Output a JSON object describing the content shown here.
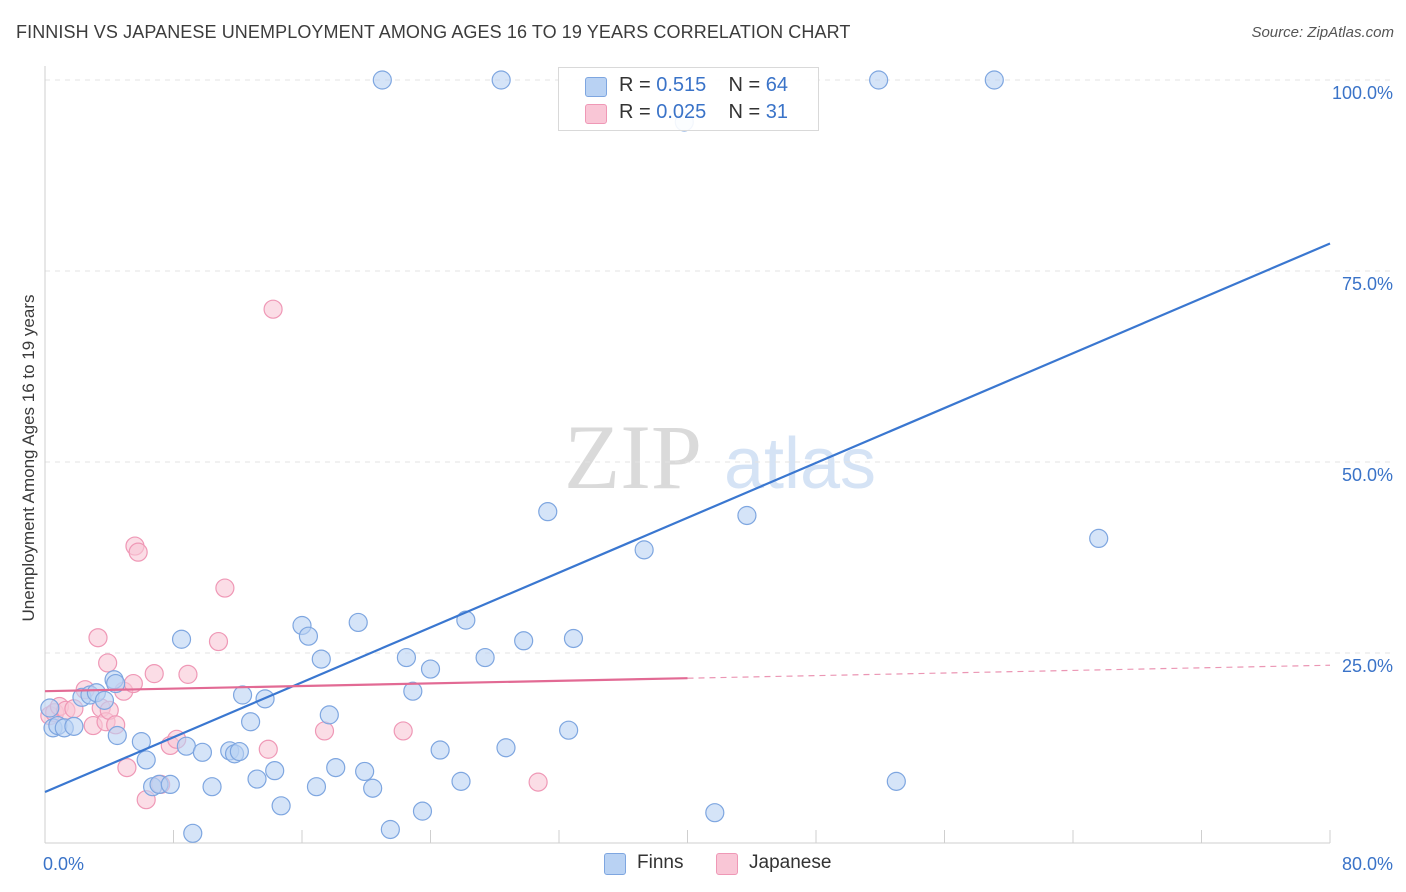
{
  "title": "FINNISH VS JAPANESE UNEMPLOYMENT AMONG AGES 16 TO 19 YEARS CORRELATION CHART",
  "source": "Source: ZipAtlas.com",
  "watermark": {
    "zip": "ZIP",
    "atlas": "atlas"
  },
  "legend": {
    "r_label": "R =",
    "n_label": "N =",
    "rows": [
      {
        "name": "Finns",
        "r": "0.515",
        "n": "64",
        "fill": "#b9d2f3",
        "stroke": "#7ea6e0"
      },
      {
        "name": "Japanese",
        "r": "0.025",
        "n": "31",
        "fill": "#f9c6d6",
        "stroke": "#ef98b6"
      }
    ]
  },
  "chart_data": {
    "type": "scatter",
    "title": "FINNISH VS JAPANESE UNEMPLOYMENT AMONG AGES 16 TO 19 YEARS CORRELATION CHART",
    "xlabel": "",
    "ylabel": "Unemployment Among Ages 16 to 19 years",
    "xlim": [
      0,
      80
    ],
    "ylim": [
      0,
      102
    ],
    "x_tick_labels": [
      "0.0%",
      "80.0%"
    ],
    "y_ticks": [
      25,
      50,
      75,
      100
    ],
    "y_tick_labels": [
      "25.0%",
      "50.0%",
      "75.0%",
      "100.0%"
    ],
    "grid": true,
    "legend_position": "top-center",
    "series": [
      {
        "name": "Finns",
        "color": "#3a77d0",
        "fill": "#b9d2f3",
        "stroke": "#7ea6e0",
        "points": [
          [
            0.3,
            17.8
          ],
          [
            0.5,
            15.2
          ],
          [
            0.8,
            15.5
          ],
          [
            1.2,
            15.2
          ],
          [
            1.8,
            15.4
          ],
          [
            2.3,
            19.2
          ],
          [
            2.8,
            19.5
          ],
          [
            3.2,
            19.8
          ],
          [
            3.7,
            18.8
          ],
          [
            4.3,
            21.5
          ],
          [
            4.4,
            21.0
          ],
          [
            4.5,
            14.2
          ],
          [
            6.0,
            13.4
          ],
          [
            6.3,
            11.0
          ],
          [
            6.7,
            7.5
          ],
          [
            7.1,
            7.8
          ],
          [
            7.8,
            7.8
          ],
          [
            8.5,
            26.8
          ],
          [
            8.8,
            12.8
          ],
          [
            9.2,
            1.4
          ],
          [
            9.8,
            12.0
          ],
          [
            10.4,
            7.5
          ],
          [
            11.5,
            12.2
          ],
          [
            11.8,
            11.8
          ],
          [
            12.1,
            12.1
          ],
          [
            12.3,
            19.5
          ],
          [
            12.8,
            16.0
          ],
          [
            13.2,
            8.5
          ],
          [
            13.7,
            19.0
          ],
          [
            14.3,
            9.6
          ],
          [
            14.7,
            5.0
          ],
          [
            16.0,
            28.6
          ],
          [
            16.4,
            27.2
          ],
          [
            16.9,
            7.5
          ],
          [
            17.2,
            24.2
          ],
          [
            17.7,
            16.9
          ],
          [
            18.1,
            10.0
          ],
          [
            19.5,
            29.0
          ],
          [
            19.9,
            9.5
          ],
          [
            20.4,
            7.3
          ],
          [
            21.0,
            100
          ],
          [
            21.5,
            1.9
          ],
          [
            22.5,
            24.4
          ],
          [
            22.9,
            20.0
          ],
          [
            23.5,
            4.3
          ],
          [
            24.0,
            22.9
          ],
          [
            24.6,
            12.3
          ],
          [
            25.9,
            8.2
          ],
          [
            26.2,
            29.3
          ],
          [
            27.4,
            24.4
          ],
          [
            28.4,
            100
          ],
          [
            28.7,
            12.6
          ],
          [
            29.8,
            26.6
          ],
          [
            31.3,
            43.5
          ],
          [
            32.6,
            14.9
          ],
          [
            32.9,
            26.9
          ],
          [
            37.3,
            38.5
          ],
          [
            39.8,
            94.5
          ],
          [
            41.7,
            4.1
          ],
          [
            43.7,
            43.0
          ],
          [
            51.9,
            100
          ],
          [
            53.0,
            8.2
          ],
          [
            59.1,
            100
          ],
          [
            65.6,
            40.0
          ]
        ]
      },
      {
        "name": "Japanese",
        "color": "#e26a94",
        "fill": "#f9c6d6",
        "stroke": "#ef98b6",
        "points": [
          [
            0.3,
            16.8
          ],
          [
            0.6,
            17.2
          ],
          [
            0.9,
            18.0
          ],
          [
            1.3,
            17.5
          ],
          [
            1.8,
            17.7
          ],
          [
            2.5,
            20.2
          ],
          [
            3.0,
            15.5
          ],
          [
            3.3,
            27.0
          ],
          [
            3.5,
            17.8
          ],
          [
            3.8,
            16.0
          ],
          [
            3.9,
            23.7
          ],
          [
            4.0,
            17.5
          ],
          [
            4.4,
            15.6
          ],
          [
            4.9,
            20.0
          ],
          [
            5.1,
            10.0
          ],
          [
            5.5,
            21.0
          ],
          [
            5.6,
            39.0
          ],
          [
            5.8,
            38.2
          ],
          [
            6.3,
            5.8
          ],
          [
            6.8,
            22.3
          ],
          [
            7.2,
            7.8
          ],
          [
            7.8,
            12.9
          ],
          [
            8.2,
            13.7
          ],
          [
            8.9,
            22.2
          ],
          [
            10.8,
            26.5
          ],
          [
            11.2,
            33.5
          ],
          [
            13.9,
            12.4
          ],
          [
            14.2,
            70.0
          ],
          [
            17.4,
            14.8
          ],
          [
            22.3,
            14.8
          ],
          [
            30.7,
            8.1
          ]
        ]
      }
    ],
    "trendlines": [
      {
        "series": "Finns",
        "x": [
          0,
          80
        ],
        "y": [
          6.8,
          78.6
        ]
      },
      {
        "series": "Japanese",
        "x": [
          0,
          40,
          80
        ],
        "y": [
          20.0,
          21.7,
          23.4
        ],
        "solid_until_x": 40
      }
    ]
  }
}
